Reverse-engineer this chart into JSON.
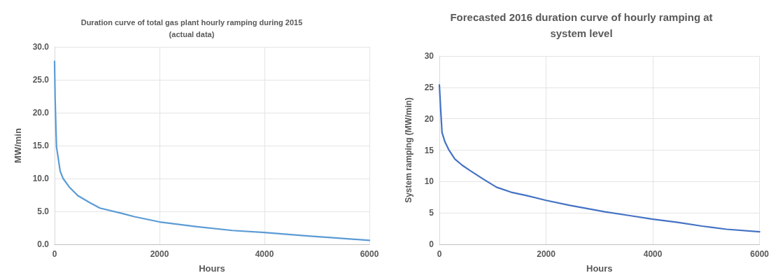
{
  "chart_data": [
    {
      "type": "line",
      "title": "Duration curve of total gas plant hourly ramping during 2015\n(actual data)",
      "xlabel": "Hours",
      "ylabel": "MW/min",
      "series": [
        {
          "color": "#5b9bd5",
          "x": [
            0,
            10,
            23,
            37,
            107,
            163,
            280,
            444,
            677,
            864,
            1285,
            1519,
            2000,
            2687,
            3388,
            4000,
            4790,
            5490,
            6000
          ],
          "values": [
            27.8,
            22.3,
            18.5,
            14.8,
            11.1,
            10.0,
            8.7,
            7.4,
            6.3,
            5.5,
            4.7,
            4.2,
            3.4,
            2.7,
            2.1,
            1.8,
            1.3,
            0.9,
            0.6
          ]
        }
      ],
      "xlim": [
        0,
        6000
      ],
      "xticks": [
        0,
        2000,
        4000,
        6000
      ],
      "ylim": [
        0,
        30
      ],
      "yticks": [
        {
          "value": 0,
          "label": "0.0"
        },
        {
          "value": 5,
          "label": "5.0"
        },
        {
          "value": 10,
          "label": "10.0"
        },
        {
          "value": 15,
          "label": "15.0"
        },
        {
          "value": 20,
          "label": "20.0"
        },
        {
          "value": 25,
          "label": "25.0"
        },
        {
          "value": 30,
          "label": "30.0"
        }
      ],
      "grid": true,
      "marker": "none",
      "line_style": "solid"
    },
    {
      "type": "line",
      "title": "Forecasted 2016 duration curve of hourly ramping at\nsystem level",
      "xlabel": "Hours",
      "ylabel": "System ramping (MW/min)",
      "series": [
        {
          "color": "#4472c4",
          "x": [
            0,
            23,
            50,
            105,
            174,
            289,
            427,
            564,
            839,
            1069,
            1344,
            1619,
            2000,
            2445,
            3087,
            3546,
            4000,
            4463,
            4922,
            5380,
            6000
          ],
          "values": [
            25.4,
            21.7,
            17.8,
            16.3,
            15.1,
            13.6,
            12.6,
            11.8,
            10.3,
            9.1,
            8.3,
            7.8,
            7.0,
            6.2,
            5.2,
            4.6,
            4.0,
            3.5,
            2.9,
            2.4,
            2.0
          ]
        }
      ],
      "xlim": [
        0,
        6000
      ],
      "xticks": [
        0,
        2000,
        4000,
        6000
      ],
      "ylim": [
        0,
        30
      ],
      "yticks": [
        0,
        5,
        10,
        15,
        20,
        25,
        30
      ],
      "grid": true,
      "marker": "none",
      "line_style": "solid"
    }
  ]
}
